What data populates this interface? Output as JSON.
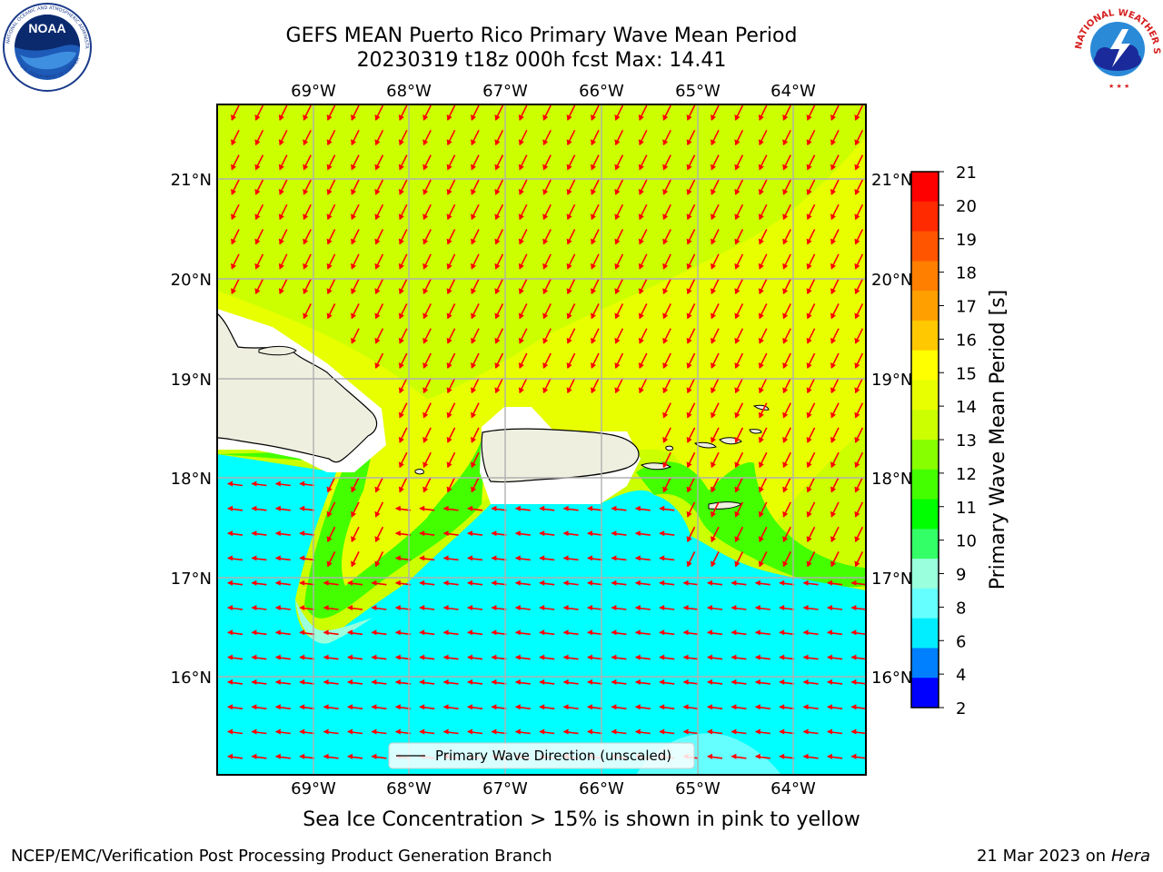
{
  "header": {
    "title_line1": "GEFS MEAN Puerto Rico Primary Wave Mean Period",
    "title_line2": "20230319 t18z 000h fcst   Max: 14.41"
  },
  "logos": {
    "noaa_text": "NOAA",
    "noaa_ring_text": "NATIONAL OCEANIC AND ATMOSPHERIC ADMINISTRATION",
    "noaa_ring_bottom": "U.S. DEPARTMENT OF COMMERCE",
    "nws_ring_text": "NATIONAL WEATHER SERVICE"
  },
  "map": {
    "lon_labels": [
      "69°W",
      "68°W",
      "67°W",
      "66°W",
      "65°W",
      "64°W"
    ],
    "lat_labels": [
      "21°N",
      "20°N",
      "19°N",
      "18°N",
      "17°N",
      "16°N"
    ],
    "legend_label": "Primary Wave Direction (unscaled)"
  },
  "colorbar": {
    "label": "Primary Wave Mean Period [s]",
    "ticks": [
      "21",
      "20",
      "19",
      "18",
      "17",
      "16",
      "15",
      "14",
      "13",
      "12",
      "11",
      "10",
      "9",
      "8",
      "6",
      "4",
      "2"
    ],
    "colors": [
      "#ff0000",
      "#ff2a00",
      "#ff5500",
      "#ff7f00",
      "#ffa000",
      "#ffc800",
      "#ffff00",
      "#e8ff00",
      "#ccff00",
      "#88ff00",
      "#44ff00",
      "#00ff00",
      "#33ff66",
      "#99ffdd",
      "#66ffff",
      "#00eeff",
      "#0080ff",
      "#0000ff"
    ]
  },
  "captions": {
    "ice_note": "Sea Ice Concentration > 15% is shown in pink to yellow",
    "footer_left": "NCEP/EMC/Verification Post Processing Product Generation Branch",
    "footer_date": "21 Mar 2023 on",
    "footer_host": "Hera"
  },
  "colors": {
    "high_period": "#ccff00",
    "mid_period": "#e8ff00",
    "low_period": "#00ffff",
    "land": "#efefe0",
    "arrows": "#ff0000",
    "grid": "#b0b0b0"
  }
}
